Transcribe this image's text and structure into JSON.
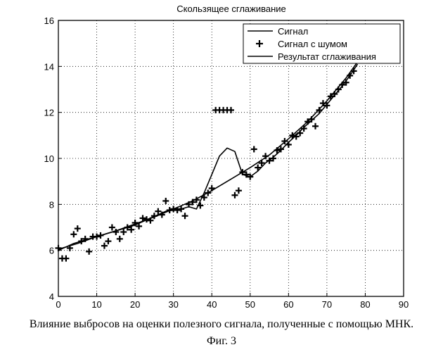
{
  "caption": "Влияние выбросов на оценки полезного сигнала, полученные с помощью МНК.",
  "figure_label": "Фиг. 3",
  "chart_data": {
    "type": "line",
    "title": "Скользящее сглаживание",
    "xlabel": "",
    "ylabel": "",
    "xlim": [
      0,
      90
    ],
    "ylim": [
      4,
      16
    ],
    "xticks": [
      0,
      10,
      20,
      30,
      40,
      50,
      60,
      70,
      80,
      90
    ],
    "yticks": [
      4,
      6,
      8,
      10,
      12,
      14,
      16
    ],
    "grid": true,
    "grid_style": "dotted",
    "legend_position": "top-right",
    "series": [
      {
        "name": "Сигнал",
        "style": "line",
        "x": [
          0,
          5,
          10,
          15,
          20,
          25,
          30,
          35,
          40,
          45,
          50,
          55,
          60,
          65,
          70,
          75,
          78
        ],
        "y": [
          6.05,
          6.3,
          6.6,
          6.85,
          7.15,
          7.45,
          7.8,
          8.15,
          8.6,
          9.1,
          9.6,
          10.15,
          10.85,
          11.6,
          12.5,
          13.5,
          14.2
        ]
      },
      {
        "name": "Сигнал с шумом",
        "style": "markers",
        "marker": "plus",
        "x": [
          0,
          1,
          2,
          3,
          4,
          5,
          6,
          7,
          8,
          9,
          10,
          11,
          12,
          13,
          14,
          15,
          16,
          17,
          18,
          19,
          20,
          21,
          22,
          23,
          24,
          25,
          26,
          27,
          28,
          29,
          30,
          31,
          32,
          33,
          34,
          35,
          36,
          37,
          38,
          39,
          40,
          41,
          42,
          43,
          44,
          45,
          46,
          47,
          48,
          49,
          50,
          51,
          52,
          53,
          54,
          55,
          56,
          57,
          58,
          59,
          60,
          61,
          62,
          63,
          64,
          65,
          66,
          67,
          68,
          69,
          70,
          71,
          72,
          73,
          74,
          75,
          76,
          77
        ],
        "y": [
          6.1,
          5.65,
          5.65,
          6.1,
          6.7,
          6.95,
          6.4,
          6.5,
          5.95,
          6.6,
          6.6,
          6.65,
          6.2,
          6.4,
          7.0,
          6.8,
          6.5,
          6.8,
          7.0,
          6.9,
          7.2,
          7.05,
          7.4,
          7.35,
          7.3,
          7.5,
          7.7,
          7.55,
          8.15,
          7.75,
          7.8,
          7.75,
          7.8,
          7.5,
          8.0,
          8.1,
          8.2,
          7.95,
          8.3,
          8.5,
          8.7,
          12.1,
          12.1,
          12.1,
          12.1,
          12.1,
          8.4,
          8.6,
          9.4,
          9.3,
          9.2,
          10.4,
          9.6,
          9.8,
          10.1,
          9.9,
          10.0,
          10.35,
          10.4,
          10.75,
          10.6,
          11.0,
          10.95,
          11.1,
          11.3,
          11.6,
          11.7,
          11.4,
          12.1,
          12.4,
          12.3,
          12.7,
          12.8,
          13.0,
          13.2,
          13.3,
          13.6,
          13.8
        ]
      },
      {
        "name": "Результат сглаживания",
        "style": "line",
        "x": [
          0,
          4,
          8,
          12,
          16,
          20,
          24,
          28,
          32,
          34,
          36,
          38,
          40,
          42,
          44,
          46,
          47,
          48,
          50,
          52,
          54,
          56,
          58,
          60,
          62,
          64,
          66,
          68,
          70,
          72,
          74,
          76,
          78
        ],
        "y": [
          6.0,
          6.3,
          6.5,
          6.7,
          6.9,
          7.1,
          7.4,
          7.7,
          7.8,
          7.9,
          7.8,
          8.5,
          9.3,
          10.1,
          10.45,
          10.3,
          9.8,
          9.3,
          9.2,
          9.45,
          9.8,
          10.05,
          10.35,
          10.7,
          11.0,
          11.35,
          11.65,
          11.95,
          12.35,
          12.75,
          13.15,
          13.6,
          14.1
        ]
      }
    ]
  }
}
